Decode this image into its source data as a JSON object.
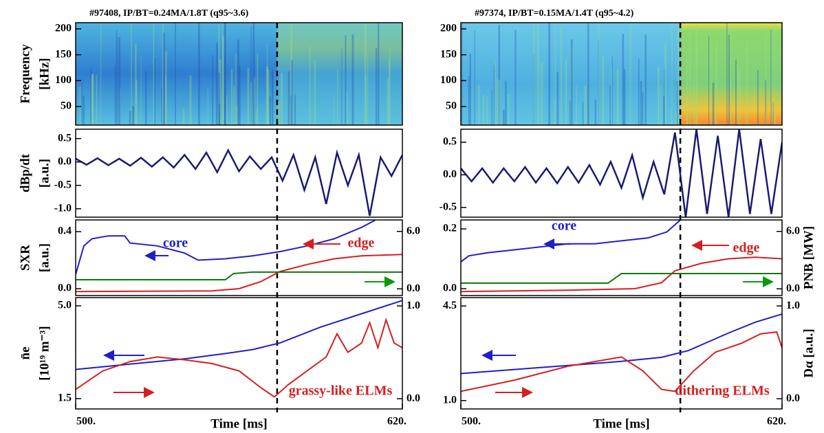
{
  "chart_data": [
    {
      "type": "spectrogram",
      "title": "#97408, IP/BT=0.24MA/1.8T (q95~3.6)",
      "ylabel": [
        "Frequency",
        "[kHz]"
      ],
      "xlim": [
        500,
        620
      ],
      "ylim": [
        14,
        212
      ],
      "yticks": [
        50,
        100,
        150,
        200
      ],
      "event_time": 574
    },
    {
      "type": "line",
      "ylabel": [
        "dBp/dt",
        "[a.u.]"
      ],
      "xlim": [
        500,
        620
      ],
      "ylim": [
        -1.18,
        0.7
      ],
      "yticks": [
        0.5,
        {
          "value": 0,
          "label": "0.0"
        },
        -0.5,
        {
          "value": -1,
          "label": "-1.0"
        }
      ],
      "series": [
        {
          "color": "#1a1a70",
          "x": [
            500,
            504,
            508,
            512,
            516,
            520,
            524,
            528,
            532,
            536,
            540,
            544,
            548,
            552,
            556,
            560,
            564,
            568,
            572,
            576,
            580,
            584,
            588,
            592,
            596,
            600,
            604,
            608,
            612,
            616,
            620
          ],
          "values": [
            0.07,
            -0.06,
            0.08,
            -0.07,
            0.07,
            -0.08,
            0.09,
            -0.1,
            0.1,
            -0.12,
            0.15,
            -0.15,
            0.2,
            -0.22,
            0.25,
            -0.2,
            0.12,
            -0.15,
            0.1,
            -0.4,
            0.15,
            -0.6,
            0.1,
            -0.9,
            0.2,
            -0.5,
            0.15,
            -1.15,
            0.1,
            -0.3,
            0.15
          ]
        }
      ]
    },
    {
      "type": "line",
      "ylabel": [
        "SXR",
        "[a.u.]"
      ],
      "xlim": [
        500,
        620
      ],
      "ylim": [
        -0.048,
        0.482
      ],
      "yticks": [
        {
          "value": 0,
          "label": "0.0"
        },
        0.4
      ],
      "y2lim": [
        -0.7,
        7.2
      ],
      "y2ticks": [
        {
          "value": 0,
          "label": "0.0"
        },
        {
          "value": 6,
          "label": "6.0"
        }
      ],
      "series": [
        {
          "color": "#1f1fc8",
          "x": [
            500,
            503,
            506,
            512,
            518,
            520,
            530,
            540,
            545,
            555,
            565,
            575,
            585,
            595,
            605,
            610
          ],
          "values": [
            0.1,
            0.3,
            0.35,
            0.37,
            0.37,
            0.32,
            0.3,
            0.25,
            0.2,
            0.21,
            0.23,
            0.26,
            0.3,
            0.35,
            0.43,
            0.48
          ]
        },
        {
          "color": "#d42020",
          "x": [
            500,
            550,
            560,
            568,
            575,
            585,
            595,
            605,
            620
          ],
          "values": [
            -0.02,
            -0.015,
            0,
            0.05,
            0.12,
            0.17,
            0.21,
            0.23,
            0.24
          ]
        },
        {
          "color": "#0a7a0a",
          "axis": "y2",
          "x": [
            500,
            555,
            558,
            565,
            620
          ],
          "values": [
            0.95,
            0.95,
            1.6,
            1.75,
            1.75
          ]
        }
      ],
      "annotations": [
        {
          "text": "core",
          "color": "#1f1fc8"
        },
        {
          "text": "edge",
          "color": "#d42020"
        }
      ]
    },
    {
      "type": "line",
      "ylabel": [
        "n̄e",
        "[10¹⁹ m⁻³]"
      ],
      "xlabel": "Time [ms]",
      "xlim": [
        500,
        620
      ],
      "xticks": [
        {
          "value": 500,
          "label": "500."
        },
        {
          "value": 620,
          "label": "620."
        }
      ],
      "ylim": [
        1.11,
        5.31
      ],
      "yticks": [
        1.5,
        {
          "value": 5,
          "label": "5.0"
        }
      ],
      "y2lim": [
        -0.11,
        1.09
      ],
      "y2ticks": [
        {
          "value": 0,
          "label": "0.0"
        },
        {
          "value": 1,
          "label": "1.0"
        }
      ],
      "series": [
        {
          "color": "#1f1fc8",
          "x": [
            500,
            520,
            540,
            555,
            565,
            575,
            590,
            605,
            620
          ],
          "values": [
            2.6,
            2.8,
            3.0,
            3.2,
            3.35,
            3.6,
            4.2,
            4.7,
            5.2
          ]
        },
        {
          "color": "#d42020",
          "axis": "y2",
          "x": [
            500,
            510,
            520,
            530,
            540,
            550,
            560,
            568,
            573,
            578,
            585,
            592,
            596,
            600,
            605,
            608,
            611,
            614,
            617,
            620
          ],
          "values": [
            0.1,
            0.3,
            0.4,
            0.45,
            0.42,
            0.38,
            0.3,
            0.12,
            0.02,
            0.15,
            0.3,
            0.45,
            0.7,
            0.5,
            0.6,
            0.82,
            0.55,
            0.85,
            0.6,
            0.55
          ]
        }
      ],
      "annotations": [
        {
          "text": "grassy-like ELMs",
          "color": "#d42020"
        }
      ]
    },
    {
      "type": "spectrogram",
      "title": "#97374, IP/BT=0.15MA/1.4T (q95~4.2)",
      "xlim": [
        500,
        620
      ],
      "ylim": [
        14,
        212
      ],
      "yticks": [
        50,
        100,
        150,
        200
      ],
      "event_time": 582
    },
    {
      "type": "line",
      "xlim": [
        500,
        620
      ],
      "ylim": [
        -0.65,
        0.7
      ],
      "yticks": [
        0.5,
        {
          "value": 0,
          "label": "0.0"
        },
        -0.5
      ],
      "series": [
        {
          "color": "#1a1a70",
          "x": [
            500,
            504,
            508,
            512,
            516,
            520,
            524,
            528,
            532,
            536,
            540,
            544,
            548,
            552,
            556,
            560,
            564,
            568,
            572,
            576,
            580,
            584,
            588,
            592,
            596,
            600,
            604,
            608,
            612,
            616,
            620
          ],
          "values": [
            0.1,
            -0.1,
            0.1,
            -0.12,
            0.1,
            -0.1,
            0.12,
            -0.12,
            0.1,
            -0.13,
            0.12,
            -0.12,
            0.15,
            -0.15,
            0.2,
            -0.2,
            0.3,
            -0.35,
            0.2,
            -0.3,
            0.65,
            -0.65,
            0.7,
            -0.6,
            0.6,
            -0.65,
            0.7,
            -0.6,
            0.55,
            -0.6,
            0.5
          ]
        }
      ]
    },
    {
      "type": "line",
      "y2label": "PNB [MW]",
      "xlim": [
        500,
        620
      ],
      "ylim": [
        -0.023,
        0.23
      ],
      "yticks": [
        {
          "value": 0,
          "label": "0.0"
        },
        0.2
      ],
      "y2lim": [
        -0.7,
        7.2
      ],
      "y2ticks": [
        {
          "value": 0,
          "label": "0.0"
        },
        {
          "value": 6,
          "label": "6.0"
        }
      ],
      "series": [
        {
          "color": "#1f1fc8",
          "x": [
            500,
            503,
            510,
            520,
            530,
            540,
            550,
            560,
            570,
            577,
            582
          ],
          "values": [
            0.09,
            0.11,
            0.12,
            0.13,
            0.14,
            0.15,
            0.15,
            0.16,
            0.17,
            0.19,
            0.23
          ]
        },
        {
          "color": "#d42020",
          "x": [
            500,
            540,
            565,
            575,
            580,
            590,
            600,
            610,
            620
          ],
          "values": [
            -0.01,
            -0.005,
            0,
            0.02,
            0.06,
            0.085,
            0.1,
            0.105,
            0.1
          ]
        },
        {
          "color": "#0a7a0a",
          "axis": "y2",
          "x": [
            500,
            555,
            560,
            620
          ],
          "values": [
            0.6,
            0.6,
            1.6,
            1.6
          ]
        }
      ],
      "annotations": [
        {
          "text": "core",
          "color": "#1f1fc8"
        },
        {
          "text": "edge",
          "color": "#d42020"
        }
      ]
    },
    {
      "type": "line",
      "y2label": "Dα [a.u.]",
      "xlabel": "Time [ms]",
      "xlim": [
        500,
        620
      ],
      "xticks": [
        {
          "value": 500,
          "label": "500."
        },
        {
          "value": 620,
          "label": "620."
        }
      ],
      "ylim": [
        0.69,
        4.81
      ],
      "yticks": [
        {
          "value": 1,
          "label": "1.0"
        },
        4.5
      ],
      "y2lim": [
        -0.11,
        1.09
      ],
      "y2ticks": [
        {
          "value": 0,
          "label": "0.0"
        },
        {
          "value": 1,
          "label": "1.0"
        }
      ],
      "series": [
        {
          "color": "#1f1fc8",
          "x": [
            500,
            520,
            540,
            560,
            575,
            585,
            600,
            610,
            620
          ],
          "values": [
            2.0,
            2.15,
            2.3,
            2.45,
            2.6,
            2.85,
            3.5,
            3.9,
            4.2
          ]
        },
        {
          "color": "#d42020",
          "axis": "y2",
          "x": [
            500,
            520,
            540,
            560,
            568,
            575,
            580,
            587,
            595,
            605,
            612,
            618,
            620
          ],
          "values": [
            0.08,
            0.2,
            0.35,
            0.45,
            0.3,
            0.1,
            0.08,
            0.3,
            0.5,
            0.6,
            0.7,
            0.72,
            0.55
          ]
        }
      ],
      "annotations": [
        {
          "text": "dithering ELMs",
          "color": "#d42020"
        }
      ]
    }
  ]
}
